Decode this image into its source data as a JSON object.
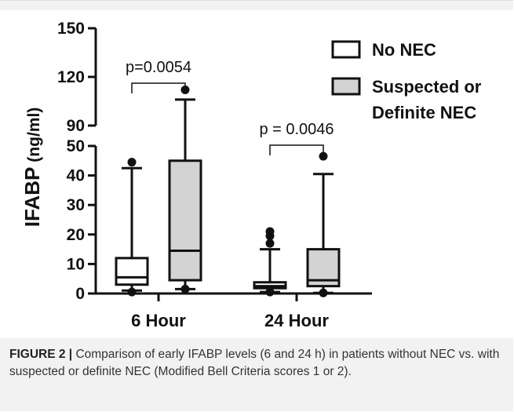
{
  "chart_data": {
    "type": "boxplot",
    "broken_axis": true,
    "ylabel_main": "IFABP",
    "ylabel_unit": "(ng/ml)",
    "y_segments": [
      {
        "range": [
          0,
          50
        ],
        "ticks": [
          0,
          10,
          20,
          30,
          40,
          50
        ]
      },
      {
        "range": [
          90,
          150
        ],
        "ticks": [
          90,
          120,
          150
        ]
      }
    ],
    "categories": [
      "6 Hour",
      "24 Hour"
    ],
    "series": [
      {
        "name": "No NEC",
        "color": "#ffffff",
        "boxes": [
          {
            "whisker_low": 1,
            "q1": 3,
            "median": 5.5,
            "q3": 12,
            "whisker_high": 42.5,
            "outliers": [
              44.5,
              0.5
            ]
          },
          {
            "whisker_low": 0.5,
            "q1": 1.8,
            "median": 2.5,
            "q3": 3.8,
            "whisker_high": 15,
            "outliers": [
              21,
              19.5,
              17,
              0.5
            ]
          }
        ]
      },
      {
        "name": "Suspected or\nDefinite NEC",
        "color": "#d3d3d3",
        "boxes": [
          {
            "whisker_low": 1.5,
            "q1": 4.5,
            "median": 14.5,
            "q3": 45,
            "whisker_high": 106,
            "outliers": [
              112,
              1.5
            ]
          },
          {
            "whisker_low": 0.2,
            "q1": 2.5,
            "median": 4.5,
            "q3": 15,
            "whisker_high": 40.5,
            "outliers": [
              46.5,
              0.2
            ]
          }
        ]
      }
    ],
    "annotations": [
      {
        "text": "p=0.0054",
        "category": "6 Hour"
      },
      {
        "text": "p = 0.0046",
        "category": "24 Hour"
      }
    ]
  },
  "caption": {
    "label": "FIGURE 2 |",
    "text": "Comparison of early IFABP levels (6 and 24 h) in patients without NEC vs. with suspected or definite NEC (Modified Bell Criteria scores 1 or 2)."
  }
}
